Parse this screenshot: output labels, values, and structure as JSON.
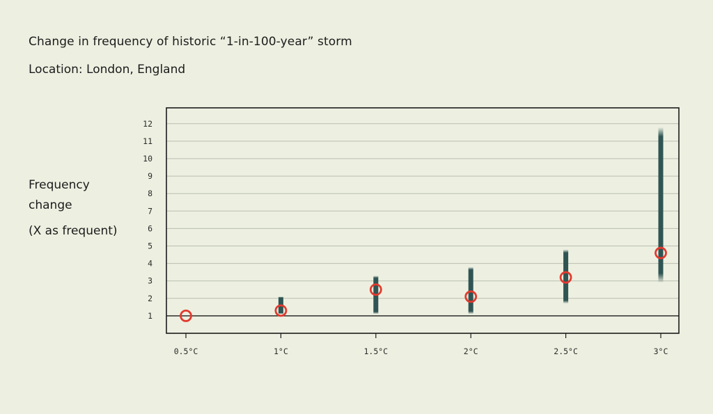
{
  "chart_data": {
    "type": "scatter",
    "title": "Change in frequency of historic “1-in-100-year” storm",
    "subtitle": "Location: London, England",
    "ylabel_lines": [
      "Frequency",
      "change"
    ],
    "ylabel_unit": "(X as frequent)",
    "categories": [
      "0.5°C",
      "1°C",
      "1.5°C",
      "2°C",
      "2.5°C",
      "3°C"
    ],
    "central": [
      1.0,
      1.3,
      2.5,
      2.1,
      3.2,
      4.6
    ],
    "range_low": [
      null,
      1.1,
      1.1,
      1.1,
      1.7,
      2.9
    ],
    "range_high": [
      null,
      2.1,
      3.3,
      3.8,
      4.8,
      11.8
    ],
    "yticks": [
      1,
      2,
      3,
      4,
      5,
      6,
      7,
      8,
      9,
      10,
      11,
      12
    ],
    "ylim": [
      0,
      12.9
    ],
    "reference_line": 1,
    "grid": true,
    "colors": {
      "range": "#2f5453",
      "marker": "#e23a2e",
      "grid": "#b9bdb0",
      "axis": "#1b1b1b",
      "background": "#edf0e1"
    }
  }
}
